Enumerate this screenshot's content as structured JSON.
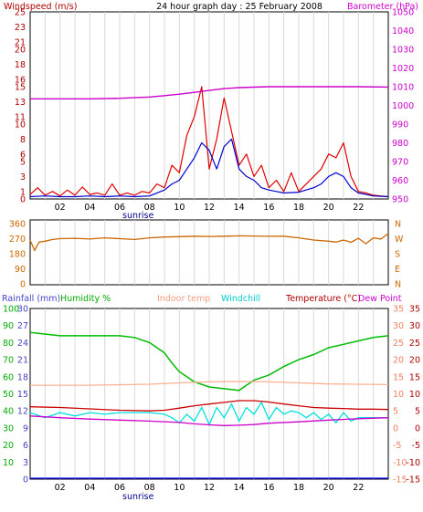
{
  "chart_data": [
    {
      "type": "line",
      "title": "24 hour graph day : 25 February 2008",
      "left_axis_label": "Windspeed (m/s)",
      "right_axis_label": "Barometer (hPa)",
      "left_ticks": [
        "0",
        "1",
        "3",
        "5",
        "6",
        "8",
        "10",
        "11",
        "13",
        "15",
        "16",
        "18",
        "20",
        "21",
        "23",
        "25"
      ],
      "right_ticks": [
        "950",
        "960",
        "970",
        "980",
        "990",
        "1000",
        "1010",
        "1020",
        "1030",
        "1040",
        "1050"
      ],
      "x_ticks": [
        "02",
        "04",
        "06",
        "08",
        "10",
        "12",
        "14",
        "16",
        "18",
        "20",
        "22"
      ],
      "x_end_tick": "",
      "sunrise_label": "sunrise",
      "sunrise_hour": 7.2,
      "xlim": [
        0,
        24
      ],
      "ylim_left": [
        0,
        25
      ],
      "ylim_right": [
        950,
        1050
      ],
      "colors": {
        "wind": "#e00000",
        "avg_wind": "#0000cc",
        "barometer": "#cc00cc",
        "left_text": "#b00000",
        "right_text": "#cc00cc"
      },
      "series": [
        {
          "name": "Windspeed (m/s)",
          "axis": "left",
          "x": [
            0,
            0.5,
            1,
            1.5,
            2,
            2.5,
            3,
            3.5,
            4,
            4.5,
            5,
            5.5,
            6,
            6.5,
            7,
            7.5,
            8,
            8.5,
            9,
            9.5,
            10,
            10.5,
            11,
            11.5,
            12,
            12.5,
            13,
            13.5,
            14,
            14.5,
            15,
            15.5,
            16,
            16.5,
            17,
            17.5,
            18,
            18.5,
            19,
            19.5,
            20,
            20.5,
            21,
            21.5,
            22,
            22.5,
            23,
            23.5,
            24
          ],
          "values": [
            0.6,
            1.5,
            0.5,
            1.0,
            0.4,
            1.2,
            0.5,
            1.6,
            0.6,
            0.8,
            0.5,
            2.0,
            0.5,
            0.8,
            0.5,
            1.0,
            0.8,
            2.0,
            1.5,
            4.5,
            3.5,
            8.5,
            11.0,
            15.0,
            4.0,
            8.0,
            13.5,
            9.0,
            4.5,
            6.0,
            3.0,
            4.5,
            1.5,
            2.5,
            1.0,
            3.5,
            1.0,
            2.0,
            3.0,
            4.0,
            6.0,
            5.5,
            7.5,
            3.0,
            1.0,
            0.8,
            0.5,
            0.4,
            0.3
          ]
        },
        {
          "name": "Average windspeed",
          "axis": "left",
          "x": [
            0,
            1,
            2,
            3,
            4,
            5,
            6,
            7,
            8,
            8.5,
            9,
            9.5,
            10,
            10.5,
            11,
            11.5,
            12,
            12.5,
            13,
            13.5,
            14,
            14.5,
            15,
            15.5,
            16,
            16.5,
            17,
            18,
            19,
            19.5,
            20,
            20.5,
            21,
            21.5,
            22,
            23,
            24
          ],
          "values": [
            0.3,
            0.4,
            0.3,
            0.3,
            0.4,
            0.3,
            0.4,
            0.3,
            0.4,
            0.8,
            1.2,
            2.0,
            2.5,
            4.0,
            5.5,
            7.5,
            6.5,
            4.0,
            7.0,
            8.0,
            4.0,
            3.0,
            2.5,
            1.5,
            1.2,
            1.0,
            0.8,
            0.9,
            1.5,
            2.0,
            3.0,
            3.5,
            3.0,
            1.5,
            0.8,
            0.4,
            0.3
          ]
        },
        {
          "name": "Barometer (hPa)",
          "axis": "right",
          "x": [
            0,
            2,
            4,
            6,
            8,
            9,
            10,
            11,
            12,
            13,
            14,
            16,
            18,
            20,
            22,
            24
          ],
          "values": [
            1003.5,
            1003.5,
            1003.5,
            1003.8,
            1004.5,
            1005.2,
            1006,
            1007,
            1008,
            1009,
            1009.5,
            1010,
            1010,
            1010,
            1010,
            1009.8
          ]
        }
      ]
    },
    {
      "type": "line",
      "left_ticks": [
        "0",
        "90",
        "180",
        "270",
        "360"
      ],
      "right_ticks": [
        "N",
        "E",
        "S",
        "W",
        "N"
      ],
      "ylim": [
        0,
        360
      ],
      "colors": {
        "direction": "#cc6600"
      },
      "series": [
        {
          "name": "Wind direction",
          "axis": "left",
          "x": [
            0,
            0.3,
            0.6,
            1,
            1.5,
            2,
            3,
            4,
            5,
            6,
            7,
            8,
            9,
            10,
            11,
            12,
            13,
            14,
            15,
            16,
            17,
            18,
            19,
            20,
            20.5,
            21,
            21.5,
            22,
            22.5,
            23,
            23.5,
            24
          ],
          "values": [
            260,
            200,
            250,
            255,
            265,
            270,
            272,
            268,
            275,
            270,
            265,
            275,
            280,
            282,
            285,
            283,
            285,
            287,
            286,
            284,
            285,
            275,
            262,
            255,
            250,
            262,
            248,
            272,
            240,
            275,
            268,
            300
          ]
        }
      ]
    },
    {
      "type": "line",
      "labels": {
        "rainfall": "Rainfall (mm)",
        "humidity": "Humidity %",
        "indoor": "Indoor temp",
        "windchill": "Windchill",
        "temperature": "Temperature (°C)",
        "dewpoint": "Dew Point"
      },
      "humidity_ticks": [
        "10",
        "20",
        "30",
        "40",
        "50",
        "60",
        "70",
        "80",
        "90",
        "100"
      ],
      "rain_ticks": [
        "0",
        "3",
        "6",
        "9",
        "12",
        "15",
        "18",
        "21",
        "24",
        "27",
        "30"
      ],
      "temp_ticks": [
        "-15",
        "-10",
        "-5",
        "0",
        "5",
        "10",
        "15",
        "20",
        "25",
        "30",
        "35"
      ],
      "x_ticks": [
        "02",
        "04",
        "06",
        "08",
        "10",
        "12",
        "14",
        "16",
        "18",
        "20",
        "22"
      ],
      "sunrise_label": "sunrise",
      "ylim_humidity": [
        0,
        100
      ],
      "ylim_rain": [
        0,
        30
      ],
      "ylim_temp": [
        -15,
        35
      ],
      "colors": {
        "humidity": "#00bb00",
        "indoor": "#ffb090",
        "windchill": "#00e0e0",
        "temperature": "#cc0000",
        "dewpoint": "#cc00cc",
        "rain": "#0000ff",
        "rain_text": "#4444cc"
      },
      "series": [
        {
          "name": "Humidity %",
          "axis": "humidity",
          "x": [
            0,
            2,
            4,
            6,
            7,
            8,
            9,
            9.5,
            10,
            10.5,
            11,
            12,
            13,
            14,
            14.5,
            15,
            16,
            17,
            18,
            19,
            20,
            21,
            22,
            23,
            24
          ],
          "values": [
            86,
            84,
            84,
            84,
            83,
            80,
            74,
            68,
            63,
            60,
            57,
            54,
            53,
            52,
            55,
            58,
            61,
            66,
            70,
            73,
            77,
            79,
            81,
            83,
            84
          ]
        },
        {
          "name": "Indoor temp",
          "axis": "temp",
          "x": [
            0,
            4,
            8,
            10,
            12,
            14,
            16,
            18,
            20,
            22,
            24
          ],
          "values": [
            12.5,
            12.5,
            12.8,
            13.2,
            13.5,
            13.6,
            13.5,
            13.2,
            12.9,
            12.8,
            12.7
          ]
        },
        {
          "name": "Windchill",
          "axis": "temp",
          "x": [
            0,
            1,
            2,
            3,
            4,
            5,
            6,
            7,
            8,
            9,
            9.5,
            10,
            10.5,
            11,
            11.5,
            12,
            12.5,
            13,
            13.5,
            14,
            14.5,
            15,
            15.5,
            16,
            16.5,
            17,
            17.5,
            18,
            18.5,
            19,
            19.5,
            20,
            20.5,
            21,
            21.5,
            22,
            23,
            24
          ],
          "values": [
            4.5,
            3,
            4.5,
            3.5,
            4.5,
            4,
            4.5,
            4.5,
            4.5,
            4,
            3,
            1.5,
            4,
            2,
            6,
            1,
            6,
            3,
            7,
            2,
            6,
            4,
            7.5,
            2.5,
            6,
            4,
            5,
            4.5,
            3,
            4.5,
            2.5,
            4,
            1.5,
            4.5,
            2,
            3,
            3,
            3
          ]
        },
        {
          "name": "Temperature (°C)",
          "axis": "temp",
          "x": [
            0,
            2,
            4,
            6,
            8,
            9,
            10,
            11,
            12,
            13,
            14,
            15,
            16,
            17,
            18,
            19,
            20,
            21,
            22,
            23,
            24
          ],
          "values": [
            6.2,
            6.0,
            5.6,
            5.2,
            5.0,
            5.2,
            5.8,
            6.5,
            7.0,
            7.5,
            8.0,
            8.0,
            7.6,
            7.0,
            6.5,
            6.0,
            5.8,
            5.7,
            5.5,
            5.5,
            5.4
          ]
        },
        {
          "name": "Dew Point",
          "axis": "temp",
          "x": [
            0,
            2,
            4,
            6,
            8,
            10,
            11,
            12,
            13,
            14,
            15,
            16,
            18,
            20,
            22,
            24
          ],
          "values": [
            3.5,
            3.0,
            2.6,
            2.3,
            2.0,
            1.6,
            1.2,
            0.9,
            0.7,
            0.8,
            1.0,
            1.4,
            1.8,
            2.3,
            2.7,
            3.0
          ]
        },
        {
          "name": "Rainfall (mm)",
          "axis": "rain",
          "x": [
            0,
            24
          ],
          "values": [
            0,
            0
          ]
        }
      ]
    }
  ]
}
